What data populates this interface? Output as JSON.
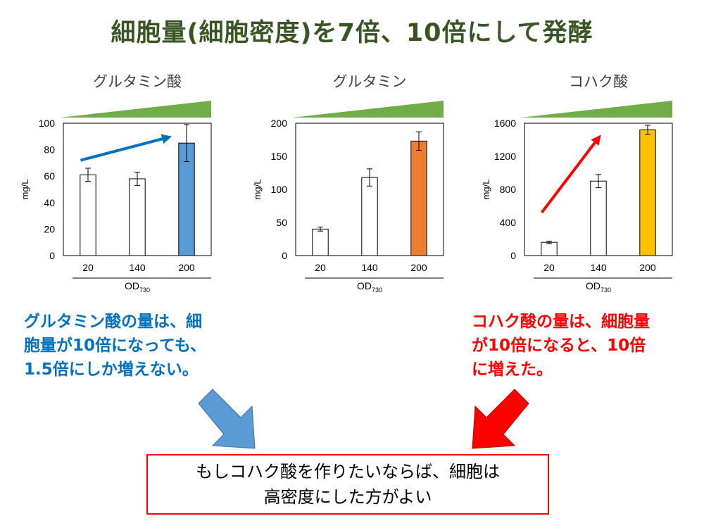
{
  "title": "細胞量(細胞密度)を7倍、10倍にして発酵",
  "colors": {
    "title": "#375623",
    "wedge": "#70AD47",
    "blue_bar": "#5B9BD5",
    "orange_bar": "#ED7D31",
    "gold_bar": "#FFC000",
    "blue_text": "#0070C0",
    "red_text": "#FF0000",
    "blue_arrow": "#0070C0",
    "red_arrow": "#FF0000",
    "big_arrow_blue": "#5B9BD5",
    "big_arrow_red": "#FF0000"
  },
  "chart_data": [
    {
      "type": "bar",
      "title": "グルタミン酸",
      "categories": [
        "20",
        "140",
        "200"
      ],
      "values": [
        61,
        58,
        85
      ],
      "errors": [
        5,
        5,
        14
      ],
      "bar_colors": [
        "#FFFFFF",
        "#FFFFFF",
        "#5B9BD5"
      ],
      "ylabel": "mg/L",
      "xlabel": "OD",
      "xlabel_sub": "730",
      "ylim": [
        0,
        100
      ],
      "yticks": [
        "0",
        "20",
        "40",
        "60",
        "80",
        "100"
      ],
      "trend_arrow": {
        "color": "#0070C0",
        "from": [
          0.35,
          72
        ],
        "to": [
          2.2,
          90
        ]
      }
    },
    {
      "type": "bar",
      "title": "グルタミン",
      "categories": [
        "20",
        "140",
        "200"
      ],
      "values": [
        40,
        118,
        173
      ],
      "errors": [
        3,
        13,
        14
      ],
      "bar_colors": [
        "#FFFFFF",
        "#FFFFFF",
        "#ED7D31"
      ],
      "ylabel": "mg/L",
      "xlabel": "OD",
      "xlabel_sub": "730",
      "ylim": [
        0,
        200
      ],
      "yticks": [
        "0",
        "50",
        "100",
        "150",
        "200"
      ]
    },
    {
      "type": "bar",
      "title": "コハク酸",
      "categories": [
        "20",
        "140",
        "200"
      ],
      "values": [
        160,
        900,
        1520
      ],
      "errors": [
        15,
        80,
        55
      ],
      "bar_colors": [
        "#FFFFFF",
        "#FFFFFF",
        "#FFC000"
      ],
      "ylabel": "mg/L",
      "xlabel": "OD",
      "xlabel_sub": "730",
      "ylim": [
        0,
        1600
      ],
      "yticks": [
        "0",
        "400",
        "800",
        "1200",
        "1600"
      ],
      "trend_arrow": {
        "color": "#FF0000",
        "from": [
          0.35,
          520
        ],
        "to": [
          1.55,
          1460
        ]
      }
    }
  ],
  "note_left": [
    "グルタミン酸の量は、細",
    "胞量が10倍になっても、",
    "1.5倍にしか増えない。"
  ],
  "note_right": [
    "コハク酸の量は、細胞量",
    "が10倍になると、10倍",
    "に増えた。"
  ],
  "conclusion": [
    "もしコハク酸を作りたいならば、細胞は",
    "高密度にした方がよい"
  ]
}
